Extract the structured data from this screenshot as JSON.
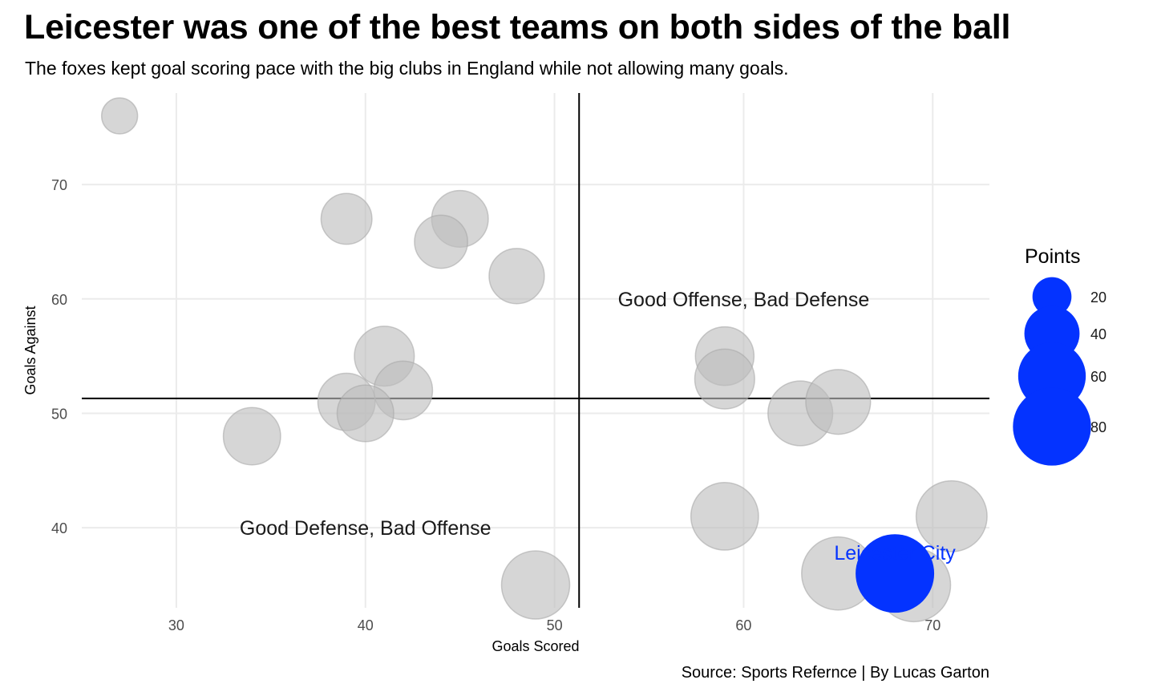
{
  "title": "Leicester was one of the best teams on both sides of the ball",
  "subtitle": "The foxes kept goal scoring pace with the big clubs in England while not allowing many goals.",
  "caption": "Source: Sports Refernce | By Lucas Garton",
  "colors": {
    "point": "#bdbdbd",
    "highlight": "#0433ff",
    "grid": "#ebebeb",
    "refline": "#000000"
  },
  "chart_data": {
    "type": "scatter",
    "xlabel": "Goals Scored",
    "ylabel": "Goals Against",
    "xlim": [
      25,
      73
    ],
    "ylim": [
      33,
      78
    ],
    "xticks": [
      30,
      40,
      50,
      60,
      70
    ],
    "yticks": [
      40,
      50,
      60,
      70
    ],
    "grid": true,
    "ref_lines": {
      "x": 51.3,
      "y": 51.3
    },
    "size_legend": {
      "title": "Points",
      "values": [
        20,
        40,
        60,
        80
      ],
      "placement": "right"
    },
    "points": [
      {
        "x": 27,
        "y": 76,
        "size": 17
      },
      {
        "x": 39,
        "y": 67,
        "size": 34
      },
      {
        "x": 45,
        "y": 67,
        "size": 42
      },
      {
        "x": 44,
        "y": 65,
        "size": 37
      },
      {
        "x": 48,
        "y": 62,
        "size": 40
      },
      {
        "x": 41,
        "y": 55,
        "size": 47
      },
      {
        "x": 42,
        "y": 52,
        "size": 45
      },
      {
        "x": 39,
        "y": 51,
        "size": 43
      },
      {
        "x": 40,
        "y": 50,
        "size": 42
      },
      {
        "x": 34,
        "y": 48,
        "size": 43
      },
      {
        "x": 49,
        "y": 35,
        "size": 61
      },
      {
        "x": 59,
        "y": 55,
        "size": 45
      },
      {
        "x": 59,
        "y": 53,
        "size": 47
      },
      {
        "x": 63,
        "y": 50,
        "size": 55
      },
      {
        "x": 65,
        "y": 51,
        "size": 55
      },
      {
        "x": 59,
        "y": 41,
        "size": 60
      },
      {
        "x": 71,
        "y": 41,
        "size": 66
      },
      {
        "x": 65,
        "y": 36,
        "size": 70
      },
      {
        "x": 69,
        "y": 35,
        "size": 71
      },
      {
        "x": 68,
        "y": 36,
        "size": 81,
        "label": "Leicester City",
        "highlight": true
      }
    ],
    "annotations": [
      {
        "text": "Good Offense, Bad Defense",
        "x": 60,
        "y": 60
      },
      {
        "text": "Good Defense, Bad Offense",
        "x": 40,
        "y": 40
      }
    ]
  }
}
